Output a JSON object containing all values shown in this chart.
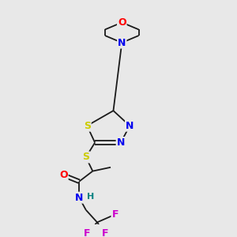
{
  "background_color": "#e8e8e8",
  "bond_color": "#1a1a1a",
  "atom_colors": {
    "O": "#ff0000",
    "N": "#0000ee",
    "S": "#cccc00",
    "F": "#cc00cc",
    "H": "#008080",
    "C": "#1a1a1a"
  },
  "font_size_atoms": 9,
  "font_size_h": 8
}
